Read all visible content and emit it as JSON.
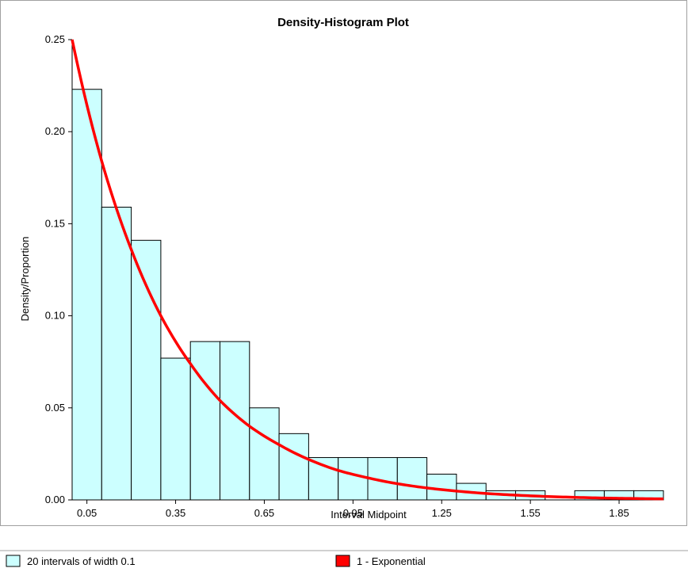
{
  "chart_data": {
    "type": "bar",
    "title": "Density-Histogram Plot",
    "xlabel": "Interval Midpoint",
    "ylabel": "Density/Proportion",
    "xlim": [
      0.0,
      2.0
    ],
    "ylim": [
      0.0,
      0.25
    ],
    "grid": false,
    "bin_width": 0.1,
    "x_ticks": [
      0.05,
      0.35,
      0.65,
      0.95,
      1.25,
      1.55,
      1.85
    ],
    "x_tick_labels": [
      "0.05",
      "0.35",
      "0.65",
      "0.95",
      "1.25",
      "1.55",
      "1.85"
    ],
    "y_ticks": [
      0.0,
      0.05,
      0.1,
      0.15,
      0.2,
      0.25
    ],
    "y_tick_labels": [
      "0.00",
      "0.05",
      "0.10",
      "0.15",
      "0.20",
      "0.25"
    ],
    "series": [
      {
        "name": "20 intervals of width 0.1",
        "kind": "histogram",
        "color": "#ccffff",
        "x": [
          0.05,
          0.15,
          0.25,
          0.35,
          0.45,
          0.55,
          0.65,
          0.75,
          0.85,
          0.95,
          1.05,
          1.15,
          1.25,
          1.35,
          1.45,
          1.55,
          1.65,
          1.75,
          1.85,
          1.95
        ],
        "values": [
          0.223,
          0.159,
          0.141,
          0.077,
          0.086,
          0.086,
          0.05,
          0.036,
          0.023,
          0.023,
          0.023,
          0.023,
          0.014,
          0.009,
          0.005,
          0.005,
          0.0,
          0.005,
          0.005,
          0.005
        ]
      },
      {
        "name": "1 - Exponential",
        "kind": "line",
        "color": "#ff0000",
        "x": [
          0.0,
          0.1,
          0.2,
          0.3,
          0.4,
          0.5,
          0.6,
          0.7,
          0.8,
          0.9,
          1.0,
          1.1,
          1.2,
          1.3,
          1.4,
          1.5,
          1.6,
          1.7,
          1.8,
          1.9,
          2.0
        ],
        "values": [
          0.25,
          0.184,
          0.136,
          0.1,
          0.074,
          0.054,
          0.04,
          0.03,
          0.022,
          0.016,
          0.012,
          0.0088,
          0.0065,
          0.0048,
          0.0035,
          0.0026,
          0.0019,
          0.0014,
          0.001,
          0.00076,
          0.00056
        ]
      }
    ],
    "legend": {
      "placement": "bottom",
      "items": [
        {
          "label": "20 intervals of width 0.1",
          "color": "#ccffff"
        },
        {
          "label": "1 - Exponential",
          "color": "#ff0000"
        }
      ]
    }
  }
}
